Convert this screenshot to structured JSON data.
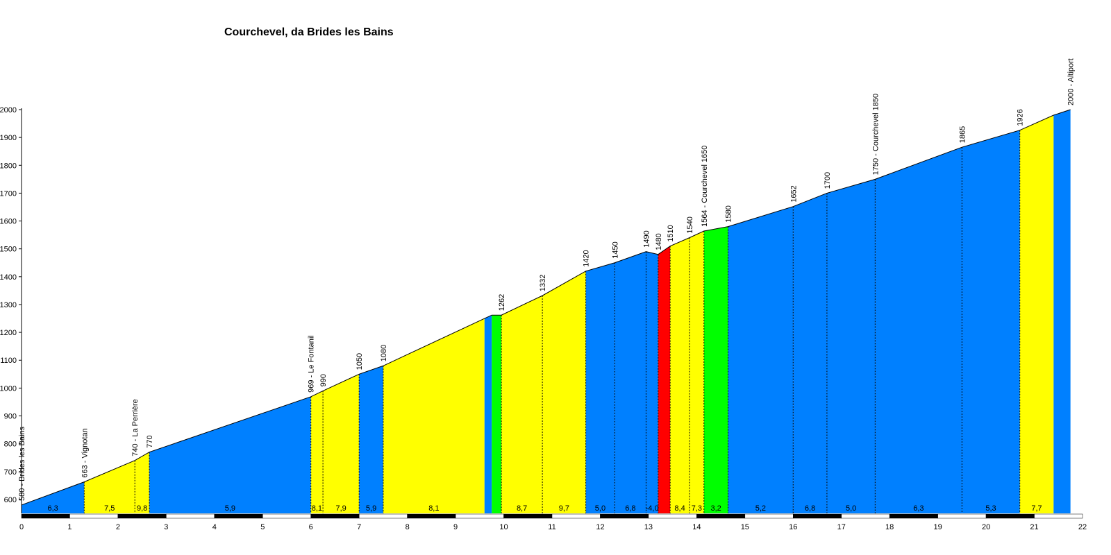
{
  "chart_data": {
    "type": "area",
    "title": "Courchevel, da Brides les Bains",
    "xlabel": "",
    "ylabel": "",
    "xlim": [
      0,
      22
    ],
    "ylim": [
      550,
      2000
    ],
    "x_ticks": [
      0,
      1,
      2,
      3,
      4,
      5,
      6,
      7,
      8,
      9,
      10,
      11,
      12,
      13,
      14,
      15,
      16,
      17,
      18,
      19,
      20,
      21,
      22
    ],
    "y_ticks": [
      600,
      700,
      800,
      900,
      1000,
      1100,
      1200,
      1300,
      1400,
      1500,
      1600,
      1700,
      1800,
      1900,
      2000
    ],
    "grid": false,
    "legend": "none",
    "colors": {
      "gradient_0_5": "#0080FF",
      "gradient_6_9": "#FFFF00",
      "gradient_10_plus": "#FF0000",
      "flat_or_descent": "#00FF00"
    },
    "profile": [
      {
        "km": 0.0,
        "alt": 580
      },
      {
        "km": 1.3,
        "alt": 663
      },
      {
        "km": 2.35,
        "alt": 740
      },
      {
        "km": 2.65,
        "alt": 770
      },
      {
        "km": 6.0,
        "alt": 969
      },
      {
        "km": 6.25,
        "alt": 990
      },
      {
        "km": 7.0,
        "alt": 1050
      },
      {
        "km": 7.5,
        "alt": 1080
      },
      {
        "km": 9.6,
        "alt": 1250
      },
      {
        "km": 9.75,
        "alt": 1262
      },
      {
        "km": 9.95,
        "alt": 1262
      },
      {
        "km": 10.8,
        "alt": 1332
      },
      {
        "km": 11.7,
        "alt": 1420
      },
      {
        "km": 12.3,
        "alt": 1450
      },
      {
        "km": 12.95,
        "alt": 1490
      },
      {
        "km": 13.2,
        "alt": 1480
      },
      {
        "km": 13.45,
        "alt": 1510
      },
      {
        "km": 13.85,
        "alt": 1540
      },
      {
        "km": 14.15,
        "alt": 1564
      },
      {
        "km": 14.65,
        "alt": 1580
      },
      {
        "km": 16.0,
        "alt": 1652
      },
      {
        "km": 16.7,
        "alt": 1700
      },
      {
        "km": 17.7,
        "alt": 1750
      },
      {
        "km": 19.5,
        "alt": 1865
      },
      {
        "km": 20.7,
        "alt": 1926
      },
      {
        "km": 21.4,
        "alt": 1980
      },
      {
        "km": 21.75,
        "alt": 2000
      }
    ],
    "segments": [
      {
        "from": 0.0,
        "to": 1.3,
        "gradient": "6,3",
        "color": "#0080FF"
      },
      {
        "from": 1.3,
        "to": 2.35,
        "gradient": "7,5",
        "color": "#FFFF00"
      },
      {
        "from": 2.35,
        "to": 2.65,
        "gradient": "9,8",
        "color": "#FFFF00"
      },
      {
        "from": 2.65,
        "to": 6.0,
        "gradient": "5,9",
        "color": "#0080FF"
      },
      {
        "from": 6.0,
        "to": 6.25,
        "gradient": "8,1",
        "color": "#FFFF00"
      },
      {
        "from": 6.25,
        "to": 7.0,
        "gradient": "7,9",
        "color": "#FFFF00"
      },
      {
        "from": 7.0,
        "to": 7.5,
        "gradient": "5,9",
        "color": "#0080FF"
      },
      {
        "from": 7.5,
        "to": 9.6,
        "gradient": "8,1",
        "color": "#FFFF00"
      },
      {
        "from": 9.6,
        "to": 9.75,
        "gradient": "",
        "color": "#0080FF"
      },
      {
        "from": 9.75,
        "to": 9.95,
        "gradient": "",
        "color": "#00FF00"
      },
      {
        "from": 9.95,
        "to": 10.8,
        "gradient": "8,7",
        "color": "#FFFF00"
      },
      {
        "from": 10.8,
        "to": 11.7,
        "gradient": "9,7",
        "color": "#FFFF00"
      },
      {
        "from": 11.7,
        "to": 12.3,
        "gradient": "5,0",
        "color": "#0080FF"
      },
      {
        "from": 12.3,
        "to": 12.95,
        "gradient": "6,8",
        "color": "#0080FF"
      },
      {
        "from": 12.95,
        "to": 13.2,
        "gradient": "-4,0",
        "color": "#0080FF"
      },
      {
        "from": 13.2,
        "to": 13.45,
        "gradient": "",
        "color": "#FF0000"
      },
      {
        "from": 13.45,
        "to": 13.85,
        "gradient": "8,4",
        "color": "#FFFF00"
      },
      {
        "from": 13.85,
        "to": 14.15,
        "gradient": "7,3",
        "color": "#FFFF00"
      },
      {
        "from": 14.15,
        "to": 14.65,
        "gradient": "3,2",
        "color": "#00FF00"
      },
      {
        "from": 14.65,
        "to": 16.0,
        "gradient": "5,2",
        "color": "#0080FF"
      },
      {
        "from": 16.0,
        "to": 16.7,
        "gradient": "6,8",
        "color": "#0080FF"
      },
      {
        "from": 16.7,
        "to": 17.7,
        "gradient": "5,0",
        "color": "#0080FF"
      },
      {
        "from": 17.7,
        "to": 19.5,
        "gradient": "6,3",
        "color": "#0080FF"
      },
      {
        "from": 19.5,
        "to": 20.7,
        "gradient": "5,3",
        "color": "#0080FF"
      },
      {
        "from": 20.7,
        "to": 21.4,
        "gradient": "7,7",
        "color": "#FFFF00"
      },
      {
        "from": 21.4,
        "to": 21.75,
        "gradient": "",
        "color": "#0080FF"
      }
    ],
    "annotations": [
      {
        "km": 0.0,
        "alt": 580,
        "text": "580 - Brides les Bains"
      },
      {
        "km": 1.3,
        "alt": 663,
        "text": "663 - Vignotan"
      },
      {
        "km": 2.35,
        "alt": 740,
        "text": "740 - La Perrière"
      },
      {
        "km": 2.65,
        "alt": 770,
        "text": "770"
      },
      {
        "km": 6.0,
        "alt": 969,
        "text": "969 - Le Fontanil"
      },
      {
        "km": 6.25,
        "alt": 990,
        "text": "990"
      },
      {
        "km": 7.0,
        "alt": 1050,
        "text": "1050"
      },
      {
        "km": 7.5,
        "alt": 1080,
        "text": "1080"
      },
      {
        "km": 9.95,
        "alt": 1262,
        "text": "1262"
      },
      {
        "km": 10.8,
        "alt": 1332,
        "text": "1332"
      },
      {
        "km": 11.7,
        "alt": 1420,
        "text": "1420"
      },
      {
        "km": 12.3,
        "alt": 1450,
        "text": "1450"
      },
      {
        "km": 12.95,
        "alt": 1490,
        "text": "1490"
      },
      {
        "km": 13.2,
        "alt": 1480,
        "text": "1480"
      },
      {
        "km": 13.45,
        "alt": 1510,
        "text": "1510"
      },
      {
        "km": 13.85,
        "alt": 1540,
        "text": "1540"
      },
      {
        "km": 14.15,
        "alt": 1564,
        "text": "1564 - Courchevel 1650"
      },
      {
        "km": 14.65,
        "alt": 1580,
        "text": "1580"
      },
      {
        "km": 16.0,
        "alt": 1652,
        "text": "1652"
      },
      {
        "km": 16.7,
        "alt": 1700,
        "text": "1700"
      },
      {
        "km": 17.7,
        "alt": 1750,
        "text": "1750 - Courchevel 1850"
      },
      {
        "km": 19.5,
        "alt": 1865,
        "text": "1865"
      },
      {
        "km": 20.7,
        "alt": 1926,
        "text": "1926"
      },
      {
        "km": 21.75,
        "alt": 2000,
        "text": "2000 - Altiport"
      }
    ]
  }
}
